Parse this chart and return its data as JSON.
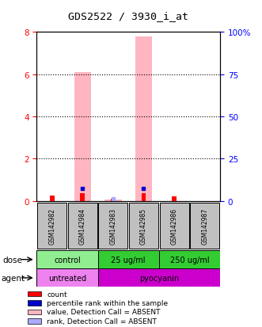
{
  "title": "GDS2522 / 3930_i_at",
  "samples": [
    "GSM142982",
    "GSM142984",
    "GSM142983",
    "GSM142985",
    "GSM142986",
    "GSM142987"
  ],
  "left_ylim": [
    0,
    8
  ],
  "right_ylim": [
    0,
    100
  ],
  "left_yticks": [
    0,
    2,
    4,
    6,
    8
  ],
  "right_yticks": [
    0,
    25,
    50,
    75,
    100
  ],
  "right_yticklabels": [
    "0",
    "25",
    "50",
    "75",
    "100%"
  ],
  "pink_bars": [
    0.0,
    6.1,
    0.05,
    7.8,
    0.0,
    0.0
  ],
  "red_bars": [
    0.25,
    0.35,
    0.1,
    0.35,
    0.2,
    0.0
  ],
  "blue_dots_right": [
    null,
    7.2,
    null,
    7.2,
    null,
    null
  ],
  "lightblue_dots_right": [
    null,
    null,
    1.0,
    null,
    null,
    null
  ],
  "pink_color": "#ffb6c1",
  "red_color": "#ff0000",
  "blue_color": "#0000cc",
  "lightblue_color": "#aaaaff",
  "sample_box_color": "#c0c0c0",
  "dose_light_green": "#90ee90",
  "dose_dark_green": "#33cc33",
  "agent_light_purple": "#ee82ee",
  "agent_dark_purple": "#cc00cc",
  "dose_groups": [
    [
      0,
      2,
      "control"
    ],
    [
      2,
      4,
      "25 ug/ml"
    ],
    [
      4,
      6,
      "250 ug/ml"
    ]
  ],
  "agent_groups": [
    [
      0,
      2,
      "untreated"
    ],
    [
      2,
      6,
      "pyocyanin"
    ]
  ],
  "legend_items": [
    [
      "#ff0000",
      "count"
    ],
    [
      "#0000cc",
      "percentile rank within the sample"
    ],
    [
      "#ffb6c1",
      "value, Detection Call = ABSENT"
    ],
    [
      "#aaaaff",
      "rank, Detection Call = ABSENT"
    ]
  ]
}
